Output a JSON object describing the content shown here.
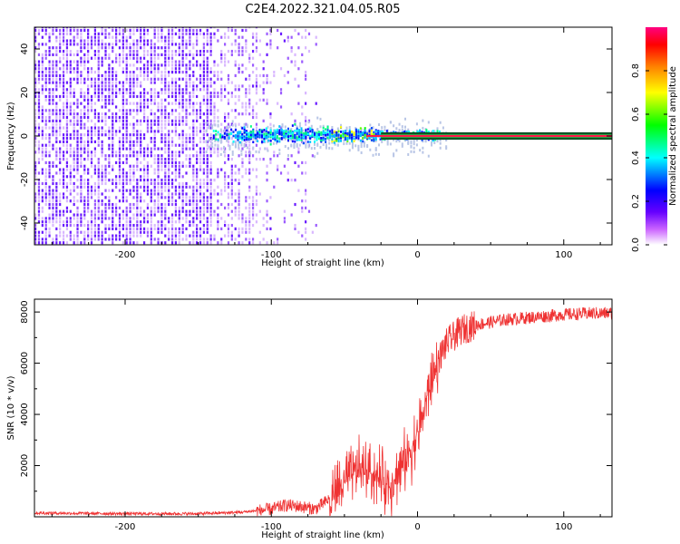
{
  "title": "C2E4.2022.321.04.05.R05",
  "chart_data": [
    {
      "type": "heatmap",
      "title": "C2E4.2022.321.04.05.R05",
      "xlabel": "Height of straight line (km)",
      "ylabel": "Frequency (Hz)",
      "xlim": [
        -262,
        133
      ],
      "ylim": [
        -50,
        50
      ],
      "xticks": [
        -200,
        -100,
        0,
        100
      ],
      "yticks": [
        -40,
        -20,
        0,
        20,
        40
      ],
      "colorbar": {
        "label": "Normalized spectral amplitude",
        "range": [
          0,
          1
        ],
        "ticks": [
          0.0,
          0.2,
          0.4,
          0.6,
          0.8
        ],
        "colormap": [
          "#ffffff",
          "#6600ff",
          "#0000ff",
          "#00ffff",
          "#00ff00",
          "#ffff00",
          "#ff8000",
          "#ff0000",
          "#ff0080"
        ]
      },
      "features": {
        "broadband_noise_x_range": [
          -262,
          -75
        ],
        "narrowband_signal_x_range": [
          -140,
          133
        ],
        "signal_frequency_hz": 0,
        "strong_line_start_x": -25
      }
    },
    {
      "type": "line",
      "xlabel": "Height of straight line (km)",
      "ylabel": "SNR (10 * v/v)",
      "xlim": [
        -262,
        133
      ],
      "ylim": [
        0,
        8500
      ],
      "xticks": [
        -200,
        -100,
        0,
        100
      ],
      "yticks": [
        2000,
        4000,
        6000,
        8000
      ],
      "color": "#ef3232",
      "grid": false,
      "x": [
        -262,
        -200,
        -150,
        -120,
        -100,
        -90,
        -80,
        -70,
        -60,
        -50,
        -40,
        -30,
        -20,
        -10,
        0,
        5,
        10,
        15,
        20,
        30,
        40,
        50,
        60,
        80,
        100,
        120,
        133
      ],
      "values": [
        150,
        120,
        120,
        180,
        300,
        450,
        400,
        300,
        700,
        1300,
        1900,
        1700,
        1200,
        2000,
        3200,
        4300,
        5400,
        6200,
        6800,
        7300,
        7500,
        7600,
        7700,
        7800,
        7900,
        7950,
        7950
      ]
    }
  ]
}
